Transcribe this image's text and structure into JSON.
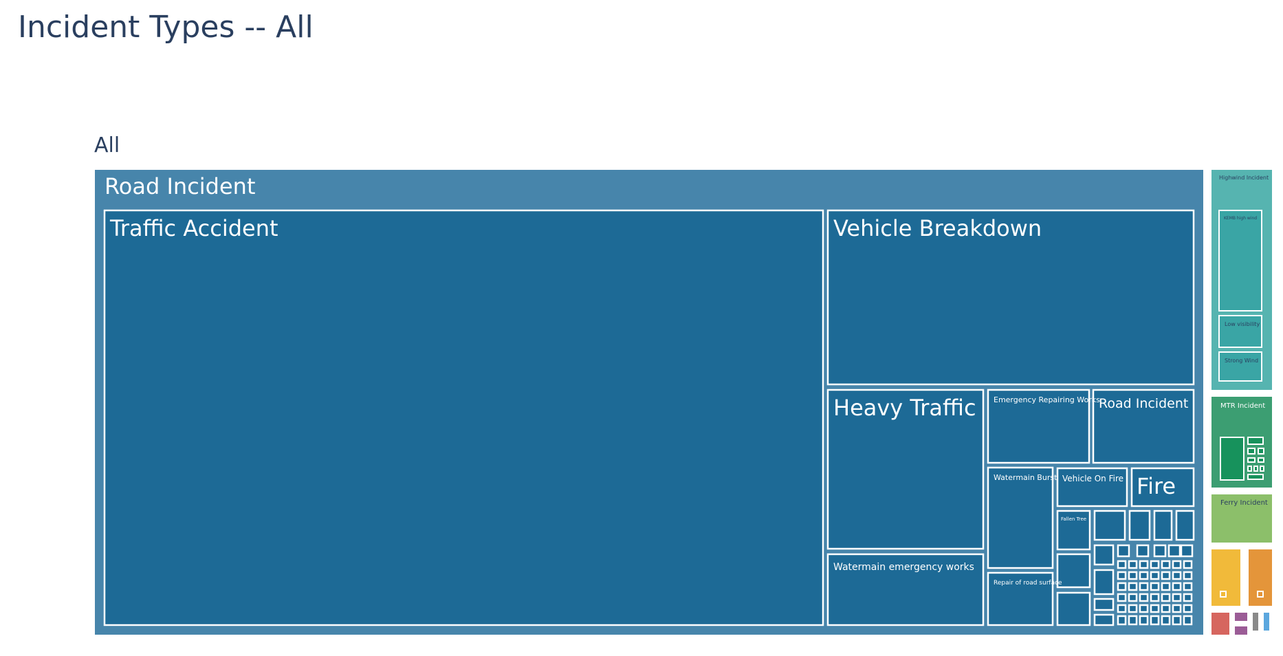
{
  "page": {
    "title": "Incident Types -- All"
  },
  "chart_data": {
    "type": "treemap",
    "title": "Incident Types -- All",
    "root": "All",
    "colors": {
      "road": "#4785ab",
      "road_child": "#1d6a96",
      "highwind": "#56b4b0",
      "highwind_child": "#3aa5a5",
      "mtr": "#3c9e72",
      "mtr_child": "#17925c",
      "ferry": "#8cbf6a",
      "yellow": "#f1ba3a",
      "orange": "#e4953a",
      "red": "#d6665f",
      "purple": "#9b5c96",
      "grey": "#8a8a8a",
      "blue": "#5ba7de"
    },
    "labels": {
      "road_incident": "Road Incident",
      "traffic_accident": "Traffic Accident",
      "vehicle_breakdown": "Vehicle Breakdown",
      "heavy_traffic": "Heavy Traffic",
      "emergency_repairing_works": "Emergency Repairing Works",
      "road_incident_child": "Road Incident",
      "watermain_emergency_works": "Watermain emergency works",
      "watermain_burst": "Watermain Burst",
      "vehicle_on_fire": "Vehicle On Fire",
      "fire": "Fire",
      "fallen_tree": "Fallen Tree",
      "repair_of_road_surface": "Repair of road surface",
      "highwind_incident": "Highwind Incident",
      "kemb_high_wind": "KEMB high wind",
      "low_visibility": "Low visibility",
      "strong_wind": "Strong Wind",
      "mtr_incident": "MTR Incident",
      "ferry_incident": "Ferry Incident"
    }
  }
}
